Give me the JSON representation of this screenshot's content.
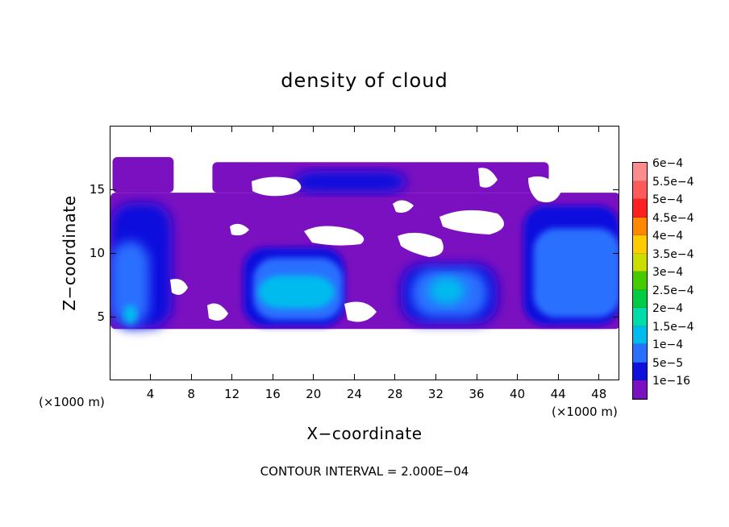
{
  "chart_data": {
    "type": "heatmap",
    "title": "density of cloud",
    "xlabel": "X−coordinate",
    "ylabel": "Z−coordinate",
    "x_unit_left": "(×1000 m)",
    "x_unit_right": "(×1000 m)",
    "footer": "CONTOUR INTERVAL = 2.000E−04",
    "xlim": [
      0,
      50
    ],
    "ylim": [
      0,
      20
    ],
    "x_ticks": [
      "4",
      "8",
      "12",
      "16",
      "20",
      "24",
      "28",
      "32",
      "36",
      "40",
      "44",
      "48"
    ],
    "y_ticks": [
      "5",
      "10",
      "15"
    ],
    "legend": {
      "labels": [
        "6e−4",
        "5.5e−4",
        "5e−4",
        "4.5e−4",
        "4e−4",
        "3.5e−4",
        "3e−4",
        "2.5e−4",
        "2e−4",
        "1.5e−4",
        "1e−4",
        "5e−5",
        "1e−16"
      ],
      "colors": [
        "#ff8c8c",
        "#ff5a5a",
        "#ff2020",
        "#ff8800",
        "#ffcc00",
        "#ccdd00",
        "#44cc00",
        "#00cc44",
        "#00ddaa",
        "#00bbee",
        "#2a70ff",
        "#1010dd",
        "#7a10c0"
      ]
    },
    "regions": [
      {
        "level": "1e−16",
        "x": [
          0,
          50
        ],
        "z": [
          4.1,
          14.8
        ]
      },
      {
        "level": "1e−16",
        "x": [
          0.2,
          6.2
        ],
        "z": [
          14.8,
          17.6
        ]
      },
      {
        "level": "1e−16",
        "x": [
          10,
          43
        ],
        "z": [
          14.8,
          17.2
        ]
      },
      {
        "level": "5e−5",
        "x": [
          0,
          6
        ],
        "z": [
          4.2,
          14
        ]
      },
      {
        "level": "5e−5",
        "x": [
          13,
          23
        ],
        "z": [
          4.3,
          10.5
        ]
      },
      {
        "level": "5e−5",
        "x": [
          28.5,
          38
        ],
        "z": [
          4.5,
          9.2
        ]
      },
      {
        "level": "5e−5",
        "x": [
          40.5,
          50
        ],
        "z": [
          4.4,
          13.8
        ]
      },
      {
        "level": "5e−5",
        "x": [
          18,
          29
        ],
        "z": [
          14.8,
          16.5
        ]
      },
      {
        "level": "1e−4",
        "x": [
          14,
          22.8
        ],
        "z": [
          4.8,
          9.7
        ]
      },
      {
        "level": "1e−4",
        "x": [
          29.5,
          37
        ],
        "z": [
          5,
          8.8
        ]
      },
      {
        "level": "1e−4",
        "x": [
          41.5,
          50
        ],
        "z": [
          5,
          12
        ]
      },
      {
        "level": "1e−4",
        "x": [
          0,
          3.8
        ],
        "z": [
          4.3,
          11
        ]
      },
      {
        "level": "1.5e−4",
        "x": [
          14.5,
          22
        ],
        "z": [
          5.7,
          8.3
        ]
      },
      {
        "level": "1.5e−4",
        "x": [
          31.2,
          34.8
        ],
        "z": [
          6,
          8.2
        ]
      },
      {
        "level": "1.5e−4",
        "x": [
          1.3,
          2.6
        ],
        "z": [
          4.5,
          6
        ]
      }
    ]
  }
}
